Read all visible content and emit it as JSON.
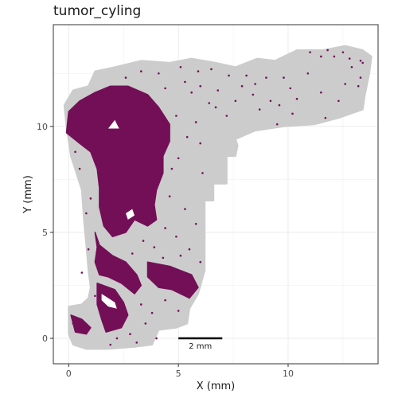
{
  "chart_data": {
    "type": "scatter",
    "title": "tumor_cyling",
    "xlabel": "X (mm)",
    "ylabel": "Y (mm)",
    "xlim": [
      -0.7,
      14.1
    ],
    "ylim": [
      -1.2,
      14.8
    ],
    "x_ticks": [
      0,
      5,
      10
    ],
    "y_ticks": [
      0,
      5,
      10
    ],
    "grid": true,
    "colors": {
      "background_cells": "#cccccc",
      "highlighted_cells": "#730f57",
      "grid": "#ebebeb",
      "panel_border": "#333333",
      "scale_bar": "#000000"
    },
    "scale_bar": {
      "label": "2 mm",
      "x_start": 5,
      "x_end": 7,
      "y": 0
    },
    "series": [
      {
        "role": "all cells",
        "regions": [
          [
            [
              0,
              0.2
            ],
            [
              0,
              1.5
            ],
            [
              0.6,
              1.6
            ],
            [
              0.9,
              1.9
            ],
            [
              1.0,
              2.4
            ],
            [
              0.9,
              3.2
            ],
            [
              0.8,
              4.4
            ],
            [
              0.7,
              5.5
            ],
            [
              0.6,
              7.0
            ],
            [
              0.1,
              8.6
            ],
            [
              0.0,
              9.3
            ],
            [
              -0.1,
              10.0
            ],
            [
              -0.2,
              11.0
            ],
            [
              0.2,
              11.7
            ],
            [
              0.9,
              11.9
            ],
            [
              1.2,
              12.6
            ],
            [
              2.1,
              12.8
            ],
            [
              3.3,
              13.1
            ],
            [
              4.6,
              13.0
            ],
            [
              5.6,
              13.2
            ],
            [
              6.7,
              13.0
            ],
            [
              7.6,
              12.8
            ],
            [
              8.6,
              13.2
            ],
            [
              9.4,
              13.1
            ],
            [
              10.4,
              13.6
            ],
            [
              11.6,
              13.6
            ],
            [
              12.6,
              13.8
            ],
            [
              13.4,
              13.6
            ],
            [
              13.8,
              13.3
            ],
            [
              13.7,
              12.5
            ],
            [
              13.5,
              11.5
            ],
            [
              13.4,
              10.8
            ],
            [
              12.3,
              10.4
            ],
            [
              11.2,
              10.1
            ],
            [
              9.8,
              10.0
            ],
            [
              8.5,
              9.8
            ],
            [
              7.6,
              9.4
            ],
            [
              7.7,
              9.1
            ],
            [
              7.6,
              8.6
            ],
            [
              7.2,
              8.6
            ],
            [
              7.2,
              7.3
            ],
            [
              6.6,
              7.3
            ],
            [
              6.6,
              6.5
            ],
            [
              6.2,
              6.5
            ],
            [
              6.2,
              4.4
            ],
            [
              6.2,
              3.2
            ],
            [
              5.9,
              2.1
            ],
            [
              5.5,
              1.4
            ],
            [
              5.4,
              0.7
            ],
            [
              4.9,
              0.5
            ],
            [
              4.1,
              0.4
            ],
            [
              3.8,
              -0.3
            ],
            [
              3.0,
              -0.4
            ],
            [
              1.8,
              -0.5
            ],
            [
              0.8,
              -0.5
            ],
            [
              0.2,
              -0.3
            ]
          ]
        ]
      },
      {
        "role": "tumor_cyling cells",
        "regions": [
          [
            [
              -0.1,
              9.7
            ],
            [
              0.0,
              10.7
            ],
            [
              0.5,
              11.2
            ],
            [
              1.2,
              11.6
            ],
            [
              1.9,
              11.9
            ],
            [
              2.7,
              11.9
            ],
            [
              3.6,
              11.5
            ],
            [
              4.1,
              10.9
            ],
            [
              4.6,
              10.1
            ],
            [
              4.6,
              9.3
            ],
            [
              4.3,
              8.6
            ],
            [
              4.3,
              7.8
            ],
            [
              4.0,
              7.0
            ],
            [
              3.9,
              6.3
            ],
            [
              4.0,
              5.6
            ],
            [
              3.6,
              5.3
            ],
            [
              3.0,
              5.6
            ],
            [
              2.6,
              5.0
            ],
            [
              2.0,
              4.8
            ],
            [
              1.6,
              5.3
            ],
            [
              1.4,
              6.2
            ],
            [
              1.4,
              7.1
            ],
            [
              1.3,
              8.0
            ],
            [
              1.0,
              8.8
            ],
            [
              0.5,
              9.2
            ]
          ],
          [
            [
              1.2,
              5.0
            ],
            [
              1.4,
              4.4
            ],
            [
              2.0,
              3.9
            ],
            [
              2.6,
              3.6
            ],
            [
              3.1,
              3.0
            ],
            [
              3.3,
              2.5
            ],
            [
              3.0,
              2.1
            ],
            [
              2.4,
              2.6
            ],
            [
              1.8,
              2.9
            ],
            [
              1.4,
              3.0
            ],
            [
              1.2,
              3.6
            ],
            [
              1.3,
              4.3
            ]
          ],
          [
            [
              1.3,
              2.6
            ],
            [
              2.1,
              2.3
            ],
            [
              2.5,
              1.7
            ],
            [
              2.7,
              1.1
            ],
            [
              2.4,
              0.5
            ],
            [
              1.7,
              0.3
            ],
            [
              1.5,
              0.9
            ],
            [
              1.3,
              1.6
            ]
          ],
          [
            [
              3.6,
              3.6
            ],
            [
              4.6,
              3.4
            ],
            [
              5.6,
              3.0
            ],
            [
              5.9,
              2.4
            ],
            [
              5.5,
              1.9
            ],
            [
              4.7,
              2.3
            ],
            [
              4.1,
              2.4
            ],
            [
              3.6,
              2.9
            ]
          ],
          [
            [
              0.1,
              1.1
            ],
            [
              0.6,
              0.9
            ],
            [
              1.0,
              0.5
            ],
            [
              0.8,
              0.2
            ],
            [
              0.3,
              0.3
            ]
          ]
        ],
        "holes_in_highlight": [
          [
            [
              2.6,
              5.9
            ],
            [
              2.9,
              6.1
            ],
            [
              3.0,
              5.8
            ],
            [
              2.7,
              5.6
            ]
          ],
          [
            [
              1.5,
              2.1
            ],
            [
              2.1,
              1.7
            ],
            [
              2.2,
              1.4
            ],
            [
              1.8,
              1.5
            ],
            [
              1.5,
              1.8
            ]
          ],
          [
            [
              1.8,
              9.9
            ],
            [
              2.1,
              10.3
            ],
            [
              2.3,
              9.9
            ]
          ]
        ],
        "points": [
          [
            0.8,
            11.2
          ],
          [
            1.6,
            11.5
          ],
          [
            2.6,
            12.3
          ],
          [
            3.3,
            12.6
          ],
          [
            4.1,
            12.5
          ],
          [
            5.1,
            12.8
          ],
          [
            5.9,
            12.6
          ],
          [
            6.5,
            12.7
          ],
          [
            7.3,
            12.4
          ],
          [
            8.1,
            12.4
          ],
          [
            9.0,
            12.3
          ],
          [
            5.3,
            12.1
          ],
          [
            6.0,
            11.9
          ],
          [
            6.8,
            11.7
          ],
          [
            7.6,
            11.2
          ],
          [
            8.4,
            11.5
          ],
          [
            9.2,
            11.2
          ],
          [
            10.1,
            11.8
          ],
          [
            10.9,
            12.5
          ],
          [
            11.5,
            13.3
          ],
          [
            12.1,
            13.3
          ],
          [
            12.8,
            13.2
          ],
          [
            13.3,
            13.1
          ],
          [
            11.0,
            13.5
          ],
          [
            11.8,
            13.6
          ],
          [
            12.5,
            13.5
          ],
          [
            12.9,
            12.8
          ],
          [
            13.4,
            13.0
          ],
          [
            4.4,
            11.8
          ],
          [
            5.6,
            11.6
          ],
          [
            6.4,
            11.1
          ],
          [
            7.2,
            10.5
          ],
          [
            8.7,
            10.8
          ],
          [
            9.6,
            11.0
          ],
          [
            10.4,
            11.3
          ],
          [
            11.5,
            11.6
          ],
          [
            12.3,
            11.2
          ],
          [
            13.2,
            11.9
          ],
          [
            8.5,
            12.0
          ],
          [
            9.8,
            12.3
          ],
          [
            4.9,
            10.5
          ],
          [
            5.4,
            9.5
          ],
          [
            6.0,
            9.2
          ],
          [
            5.0,
            8.5
          ],
          [
            4.7,
            8.0
          ],
          [
            6.1,
            7.8
          ],
          [
            5.3,
            6.1
          ],
          [
            5.8,
            5.4
          ],
          [
            4.6,
            6.7
          ],
          [
            4.4,
            5.2
          ],
          [
            4.9,
            4.8
          ],
          [
            5.5,
            4.2
          ],
          [
            5.1,
            3.9
          ],
          [
            6.0,
            3.6
          ],
          [
            3.9,
            4.3
          ],
          [
            4.3,
            3.8
          ],
          [
            4.4,
            1.8
          ],
          [
            5.0,
            1.3
          ],
          [
            3.8,
            1.2
          ],
          [
            3.5,
            0.7
          ],
          [
            4.0,
            0.0
          ],
          [
            2.8,
            0.2
          ],
          [
            3.3,
            1.6
          ],
          [
            2.9,
            4.0
          ],
          [
            3.4,
            4.6
          ],
          [
            1.2,
            2.0
          ],
          [
            0.6,
            3.1
          ],
          [
            0.9,
            4.2
          ],
          [
            0.8,
            5.9
          ],
          [
            1.0,
            6.6
          ],
          [
            0.5,
            8.0
          ],
          [
            0.3,
            8.8
          ],
          [
            5.8,
            10.2
          ],
          [
            6.7,
            10.9
          ],
          [
            7.9,
            11.9
          ],
          [
            9.5,
            10.1
          ],
          [
            10.2,
            10.6
          ],
          [
            11.7,
            10.4
          ],
          [
            12.6,
            12.0
          ],
          [
            13.3,
            12.3
          ],
          [
            5.6,
            2.5
          ],
          [
            4.8,
            2.8
          ],
          [
            1.9,
            -0.3
          ],
          [
            3.1,
            -0.2
          ],
          [
            0.2,
            0.7
          ],
          [
            2.2,
            0.0
          ]
        ]
      }
    ]
  }
}
